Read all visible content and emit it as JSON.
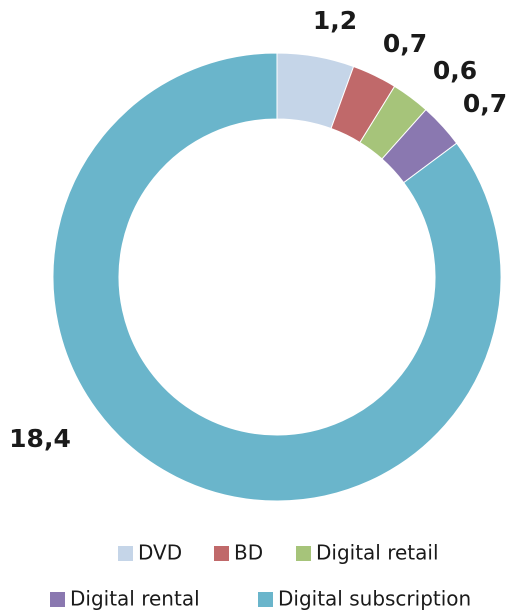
{
  "chart_data": {
    "type": "donut",
    "categories": [
      "DVD",
      "BD",
      "Digital retail",
      "Digital rental",
      "Digital subscription"
    ],
    "values": [
      1.2,
      0.7,
      0.6,
      0.7,
      18.4
    ],
    "value_labels": [
      "1,2",
      "0,7",
      "0,6",
      "0,7",
      "18,4"
    ],
    "colors": [
      "#c5d5e8",
      "#c0696a",
      "#a6c47a",
      "#8a78b0",
      "#6ab5cb"
    ]
  }
}
